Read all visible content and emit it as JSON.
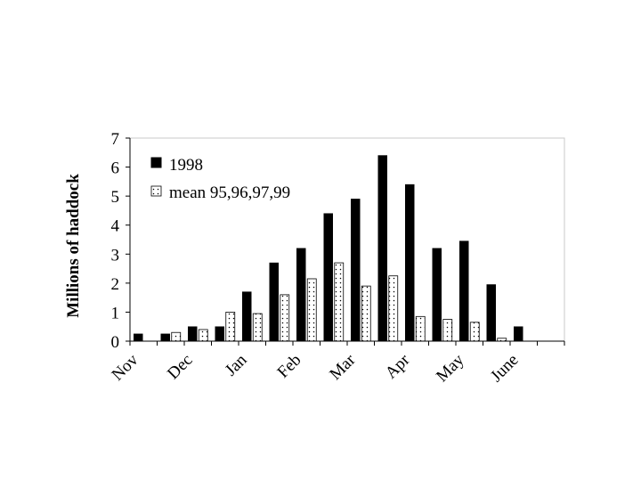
{
  "chart_data": {
    "type": "bar",
    "title": "",
    "xlabel": "",
    "ylabel": "Millions of haddock",
    "ylim": [
      0,
      7
    ],
    "yticks": [
      0,
      1,
      2,
      3,
      4,
      5,
      6,
      7
    ],
    "grid": false,
    "legend_position": "top-left",
    "x_tick_labels": [
      "Nov",
      "Dec",
      "Jan",
      "Feb",
      "Mar",
      "Apr",
      "May",
      "June"
    ],
    "series": [
      {
        "name": "1998",
        "fill": "#000000",
        "values": [
          0.25,
          0.25,
          0.5,
          0.5,
          1.7,
          2.7,
          3.2,
          4.4,
          4.9,
          6.4,
          5.4,
          3.2,
          3.45,
          1.95,
          0.5,
          0
        ]
      },
      {
        "name": "mean 95,96,97,99",
        "fill": "dotted",
        "values": [
          0,
          0.3,
          0.4,
          1.0,
          0.95,
          1.6,
          2.15,
          2.7,
          1.9,
          2.25,
          0.85,
          0.75,
          0.65,
          0.1,
          0,
          0
        ]
      }
    ]
  }
}
